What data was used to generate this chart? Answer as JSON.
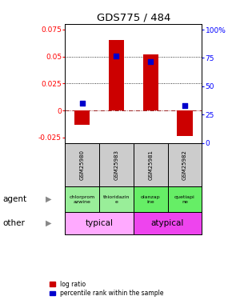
{
  "title": "GDS775 / 484",
  "samples": [
    "GSM25980",
    "GSM25983",
    "GSM25981",
    "GSM25982"
  ],
  "log_ratios": [
    -0.013,
    0.065,
    0.052,
    -0.024
  ],
  "percentile_ranks": [
    0.35,
    0.77,
    0.72,
    0.33
  ],
  "ylim_left": [
    -0.03,
    0.08
  ],
  "ylim_right": [
    0,
    1.05
  ],
  "yticks_left": [
    -0.025,
    0,
    0.025,
    0.05,
    0.075
  ],
  "ytick_labels_left": [
    "-0.025",
    "0",
    "0.025",
    "0.05",
    "0.075"
  ],
  "yticks_right": [
    0.0,
    0.25,
    0.5,
    0.75,
    1.0
  ],
  "ytick_labels_right": [
    "0",
    "25",
    "50",
    "75",
    "100%"
  ],
  "hlines": [
    0.025,
    0.05
  ],
  "bar_color": "#cc0000",
  "dot_color": "#0000cc",
  "agent_labels": [
    "chlorprom\nazwine",
    "thioridazin\ne",
    "olanzap\nine",
    "quetiapi\nne"
  ],
  "agent_bg_typical": "#99ee99",
  "agent_bg_atypical": "#66ee66",
  "other_typical_color": "#ffaaff",
  "other_atypical_color": "#ee44ee",
  "sample_bg": "#cccccc",
  "background_color": "#ffffff",
  "bar_width": 0.45
}
